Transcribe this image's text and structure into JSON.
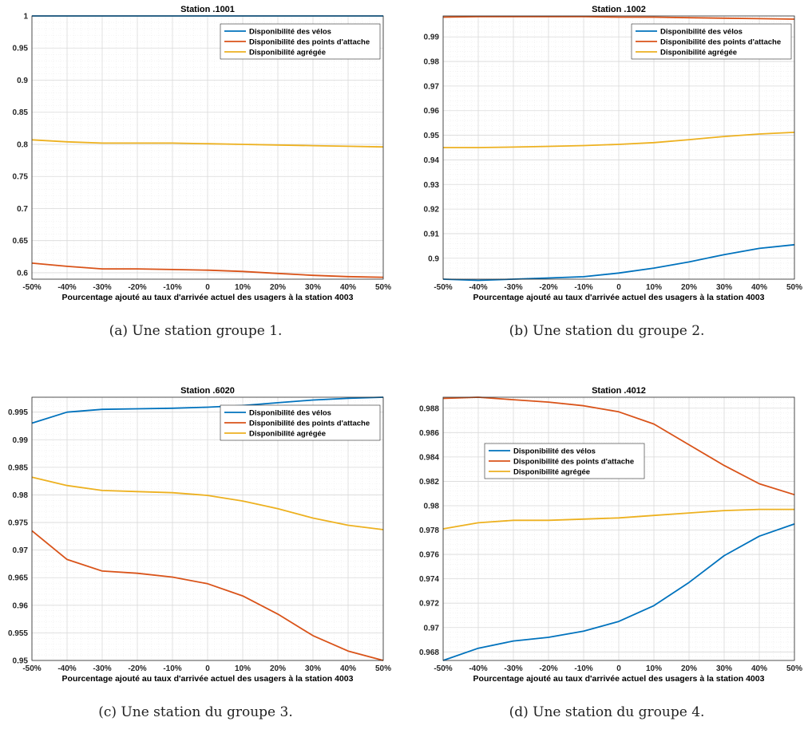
{
  "colors": {
    "velos": "#0072BD",
    "attache": "#D95319",
    "agregee": "#EDB120"
  },
  "chart_data": [
    {
      "type": "line",
      "title": "Station .1001",
      "xlabel": "Pourcentage ajouté au taux d'arrivée actuel des usagers à la station 4003",
      "ylabel": "",
      "caption": "(a)  Une station groupe 1.",
      "x": [
        "-50%",
        "-40%",
        "-30%",
        "-20%",
        "-10%",
        "0",
        "10%",
        "20%",
        "30%",
        "40%",
        "50%"
      ],
      "ylim": [
        0.59,
        1.0
      ],
      "yticks": [
        0.6,
        0.65,
        0.7,
        0.75,
        0.8,
        0.85,
        0.9,
        0.95,
        1.0
      ],
      "ytick_labels": [
        "0.6",
        "0.65",
        "0.7",
        "0.75",
        "0.8",
        "0.85",
        "0.9",
        "0.95",
        "1"
      ],
      "grid": true,
      "legend_position": "top-right",
      "series": [
        {
          "name": "Disponibilité des vélos",
          "color_key": "velos",
          "values": [
            1.0,
            1.0,
            1.0,
            1.0,
            1.0,
            1.0,
            1.0,
            1.0,
            1.0,
            1.0,
            1.0
          ]
        },
        {
          "name": "Disponibilité des points d'attache",
          "color_key": "attache",
          "values": [
            0.615,
            0.61,
            0.606,
            0.606,
            0.605,
            0.604,
            0.602,
            0.599,
            0.596,
            0.594,
            0.593
          ]
        },
        {
          "name": "Disponibilité agrégée",
          "color_key": "agregee",
          "values": [
            0.807,
            0.804,
            0.802,
            0.802,
            0.802,
            0.801,
            0.8,
            0.799,
            0.798,
            0.797,
            0.796
          ]
        }
      ]
    },
    {
      "type": "line",
      "title": "Station .1002",
      "xlabel": "Pourcentage ajouté au taux d'arrivée actuel des usagers à la station 4003",
      "ylabel": "",
      "caption": "(b)  Une station du groupe 2.",
      "x": [
        "-50%",
        "-40%",
        "-30%",
        "-20%",
        "-10%",
        "0",
        "10%",
        "20%",
        "30%",
        "40%",
        "50%"
      ],
      "ylim": [
        0.8915,
        0.9985
      ],
      "yticks": [
        0.9,
        0.91,
        0.92,
        0.93,
        0.94,
        0.95,
        0.96,
        0.97,
        0.98,
        0.99
      ],
      "ytick_labels": [
        "0.9",
        "0.91",
        "0.92",
        "0.93",
        "0.94",
        "0.95",
        "0.96",
        "0.97",
        "0.98",
        "0.99"
      ],
      "grid": true,
      "legend_position": "top-right",
      "series": [
        {
          "name": "Disponibilité des vélos",
          "color_key": "velos",
          "values": [
            0.8915,
            0.891,
            0.8915,
            0.892,
            0.8925,
            0.894,
            0.896,
            0.8985,
            0.9015,
            0.904,
            0.9055
          ]
        },
        {
          "name": "Disponibilité des points d'attache",
          "color_key": "attache",
          "values": [
            0.998,
            0.9982,
            0.9982,
            0.9982,
            0.9982,
            0.998,
            0.998,
            0.9978,
            0.9976,
            0.9974,
            0.9972
          ]
        },
        {
          "name": "Disponibilité agrégée",
          "color_key": "agregee",
          "values": [
            0.945,
            0.945,
            0.9452,
            0.9455,
            0.9458,
            0.9463,
            0.947,
            0.9482,
            0.9495,
            0.9505,
            0.9512
          ]
        }
      ]
    },
    {
      "type": "line",
      "title": "Station .6020",
      "xlabel": "Pourcentage ajouté au taux d'arrivée actuel des usagers à la station 4003",
      "ylabel": "",
      "caption": "(c)  Une station du groupe 3.",
      "x": [
        "-50%",
        "-40%",
        "-30%",
        "-20%",
        "-10%",
        "0",
        "10%",
        "20%",
        "30%",
        "40%",
        "50%"
      ],
      "ylim": [
        0.95,
        0.9977
      ],
      "yticks": [
        0.95,
        0.955,
        0.96,
        0.965,
        0.97,
        0.975,
        0.98,
        0.985,
        0.99,
        0.995
      ],
      "ytick_labels": [
        "0.95",
        "0.955",
        "0.96",
        "0.965",
        "0.97",
        "0.975",
        "0.98",
        "0.985",
        "0.99",
        "0.995"
      ],
      "grid": true,
      "legend_position": "top-right",
      "series": [
        {
          "name": "Disponibilité des vélos",
          "color_key": "velos",
          "values": [
            0.993,
            0.995,
            0.9955,
            0.9956,
            0.9957,
            0.9959,
            0.9962,
            0.9967,
            0.9972,
            0.9975,
            0.9977
          ]
        },
        {
          "name": "Disponibilité des points d'attache",
          "color_key": "attache",
          "values": [
            0.9735,
            0.9683,
            0.9662,
            0.9658,
            0.9651,
            0.9639,
            0.9617,
            0.9584,
            0.9545,
            0.9517,
            0.95
          ]
        },
        {
          "name": "Disponibilité agrégée",
          "color_key": "agregee",
          "values": [
            0.9832,
            0.9817,
            0.9808,
            0.9806,
            0.9804,
            0.9799,
            0.9789,
            0.9775,
            0.9758,
            0.9745,
            0.9737
          ]
        }
      ]
    },
    {
      "type": "line",
      "title": "Station .4012",
      "xlabel": "Pourcentage ajouté au taux d'arrivée actuel des usagers à la station 4003",
      "ylabel": "",
      "caption": "(d)  Une station du groupe 4.",
      "x": [
        "-50%",
        "-40%",
        "-30%",
        "-20%",
        "-10%",
        "0",
        "10%",
        "20%",
        "30%",
        "40%",
        "50%"
      ],
      "ylim": [
        0.9673,
        0.9889
      ],
      "yticks": [
        0.968,
        0.97,
        0.972,
        0.974,
        0.976,
        0.978,
        0.98,
        0.982,
        0.984,
        0.986,
        0.988
      ],
      "ytick_labels": [
        "0.968",
        "0.97",
        "0.972",
        "0.974",
        "0.976",
        "0.978",
        "0.98",
        "0.982",
        "0.984",
        "0.986",
        "0.988"
      ],
      "grid": true,
      "legend_position": "top-left",
      "series": [
        {
          "name": "Disponibilité des vélos",
          "color_key": "velos",
          "values": [
            0.9673,
            0.9683,
            0.9689,
            0.9692,
            0.9697,
            0.9705,
            0.9718,
            0.9737,
            0.9759,
            0.9775,
            0.9785
          ]
        },
        {
          "name": "Disponibilité des points d'attache",
          "color_key": "attache",
          "values": [
            0.9888,
            0.9889,
            0.9887,
            0.9885,
            0.9882,
            0.9877,
            0.9867,
            0.985,
            0.9833,
            0.9818,
            0.9809
          ]
        },
        {
          "name": "Disponibilité agrégée",
          "color_key": "agregee",
          "values": [
            0.9781,
            0.9786,
            0.9788,
            0.9788,
            0.9789,
            0.979,
            0.9792,
            0.9794,
            0.9796,
            0.9797,
            0.9797
          ]
        }
      ]
    }
  ]
}
